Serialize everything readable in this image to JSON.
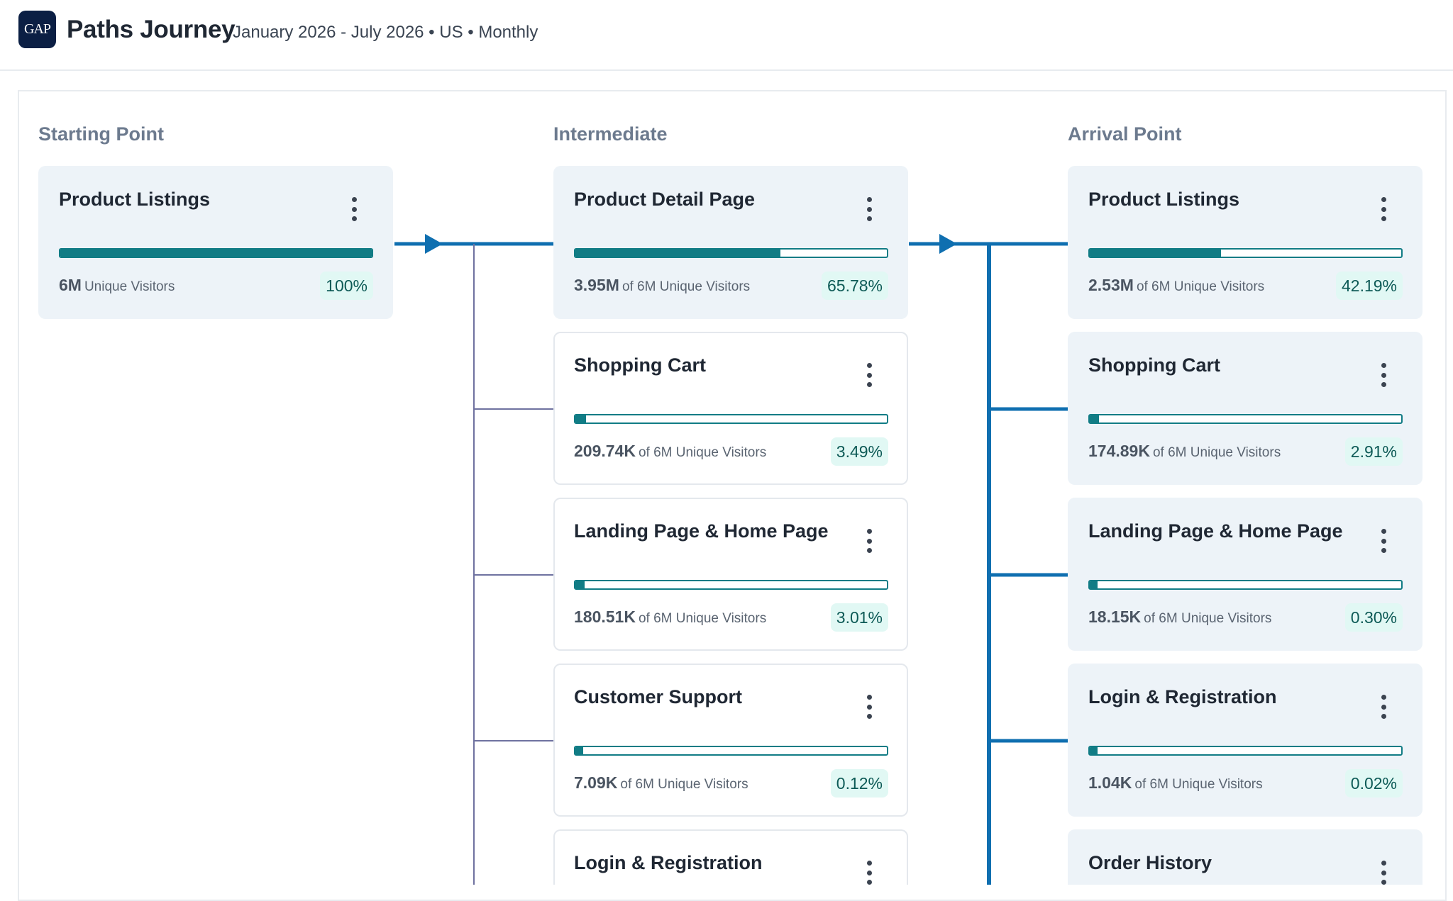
{
  "header": {
    "logo_text": "GAP",
    "title": "Paths Journey",
    "subtitle": "January 2026 - July 2026 • US • Monthly"
  },
  "columns": {
    "start": "Starting Point",
    "intermediate": "Intermediate",
    "arrival": "Arrival Point"
  },
  "start_cards": [
    {
      "title": "Product Listings",
      "value": "6M",
      "label": "Unique Visitors",
      "pct": "100%",
      "fraction": 1.0
    }
  ],
  "intermediate_cards": [
    {
      "title": "Product Detail Page",
      "value": "3.95M",
      "label": "of 6M Unique Visitors",
      "pct": "65.78%",
      "fraction": 0.6578
    },
    {
      "title": "Shopping Cart",
      "value": "209.74K",
      "label": "of 6M Unique Visitors",
      "pct": "3.49%",
      "fraction": 0.0349
    },
    {
      "title": "Landing Page & Home Page",
      "value": "180.51K",
      "label": "of 6M Unique Visitors",
      "pct": "3.01%",
      "fraction": 0.0301
    },
    {
      "title": "Customer Support",
      "value": "7.09K",
      "label": "of 6M Unique Visitors",
      "pct": "0.12%",
      "fraction": 0.0012
    },
    {
      "title": "Login & Registration",
      "value": "",
      "label": "",
      "pct": "",
      "fraction": 0
    }
  ],
  "arrival_cards": [
    {
      "title": "Product Listings",
      "value": "2.53M",
      "label": "of 6M Unique Visitors",
      "pct": "42.19%",
      "fraction": 0.4219
    },
    {
      "title": "Shopping Cart",
      "value": "174.89K",
      "label": "of 6M Unique Visitors",
      "pct": "2.91%",
      "fraction": 0.0291
    },
    {
      "title": "Landing Page & Home Page",
      "value": "18.15K",
      "label": "of 6M Unique Visitors",
      "pct": "0.30%",
      "fraction": 0.003
    },
    {
      "title": "Login & Registration",
      "value": "1.04K",
      "label": "of 6M Unique Visitors",
      "pct": "0.02%",
      "fraction": 0.0002
    },
    {
      "title": "Order History",
      "value": "",
      "label": "",
      "pct": "",
      "fraction": 0
    }
  ],
  "colors": {
    "brand": "#0b1f44",
    "bar": "#117c85",
    "connector": "#0f6fb0",
    "branch": "#6f72a0",
    "card_active": "#edf3f8",
    "pct_badge": "#e1f8f4"
  }
}
